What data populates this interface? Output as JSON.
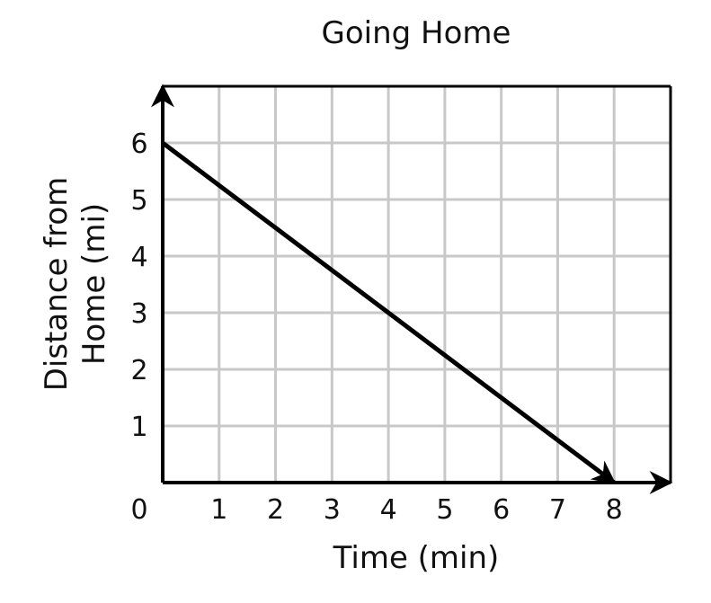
{
  "chart_data": {
    "type": "line",
    "title": "Going Home",
    "xlabel": "Time (min)",
    "ylabel_lines": [
      "Distance from",
      "Home (mi)"
    ],
    "xlim": [
      0,
      9
    ],
    "ylim": [
      0,
      7
    ],
    "xticks": [
      "1",
      "2",
      "3",
      "4",
      "5",
      "6",
      "7",
      "8"
    ],
    "yticks": [
      "1",
      "2",
      "3",
      "4",
      "5",
      "6"
    ],
    "origin_label": "0",
    "grid": true,
    "grid_color": "#c8c8c8",
    "line_color": "#000000",
    "series": [
      {
        "points": [
          [
            0,
            6
          ],
          [
            8,
            0
          ]
        ]
      }
    ]
  }
}
